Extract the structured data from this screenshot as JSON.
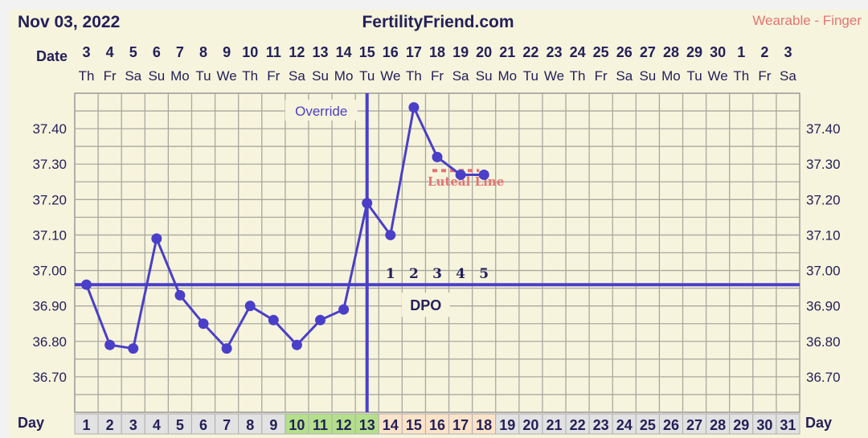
{
  "header": {
    "date": "Nov 03, 2022",
    "site": "FertilityFriend.com",
    "source": "Wearable - Finger"
  },
  "labels": {
    "date_row": "Date",
    "day_row": "Day",
    "override": "Override",
    "dpo": "DPO",
    "luteal_line": "Luteal Line"
  },
  "colors": {
    "line": "#4a3fc8",
    "text": "#23205a",
    "luteal": "#e57373",
    "fertile": "#b5e08a",
    "post_ovulation": "#fde3c8",
    "day_cell": "#e2e2e2",
    "background": "#f7f4dd"
  },
  "chart_data": {
    "type": "line",
    "title": "",
    "xlabel": "Day",
    "ylabel": "",
    "ylim": [
      36.6,
      37.5
    ],
    "y_ticks": [
      "37.40",
      "37.30",
      "37.20",
      "37.10",
      "37.00",
      "36.90",
      "36.80",
      "36.70"
    ],
    "grid": true,
    "dates": [
      "3",
      "4",
      "5",
      "6",
      "7",
      "8",
      "9",
      "10",
      "11",
      "12",
      "13",
      "14",
      "15",
      "16",
      "17",
      "18",
      "19",
      "20",
      "21",
      "22",
      "23",
      "24",
      "25",
      "26",
      "27",
      "28",
      "29",
      "30",
      "1",
      "2",
      "3"
    ],
    "weekdays": [
      "Th",
      "Fr",
      "Sa",
      "Su",
      "Mo",
      "Tu",
      "We",
      "Th",
      "Fr",
      "Sa",
      "Su",
      "Mo",
      "Tu",
      "We",
      "Th",
      "Fr",
      "Sa",
      "Su",
      "Mo",
      "Tu",
      "We",
      "Th",
      "Fr",
      "Sa",
      "Su",
      "Mo",
      "Tu",
      "We",
      "Th",
      "Fr",
      "Sa"
    ],
    "days": [
      1,
      2,
      3,
      4,
      5,
      6,
      7,
      8,
      9,
      10,
      11,
      12,
      13,
      14,
      15,
      16,
      17,
      18,
      19,
      20,
      21,
      22,
      23,
      24,
      25,
      26,
      27,
      28,
      29,
      30,
      31
    ],
    "temperatures": [
      36.96,
      36.79,
      36.78,
      37.09,
      36.93,
      36.85,
      36.78,
      36.9,
      36.86,
      36.79,
      36.86,
      36.89,
      37.19,
      37.1,
      37.46,
      37.32,
      37.27,
      37.27
    ],
    "coverline": 36.96,
    "ovulation_day": 13,
    "fertile_days": [
      10,
      11,
      12,
      13
    ],
    "post_ovulation_days": [
      14,
      15,
      16,
      17,
      18
    ],
    "dpo_labels": [
      "1",
      "2",
      "3",
      "4",
      "5"
    ],
    "luteal_line": {
      "value": 37.3,
      "from_day": 16,
      "to_day": 18
    }
  }
}
